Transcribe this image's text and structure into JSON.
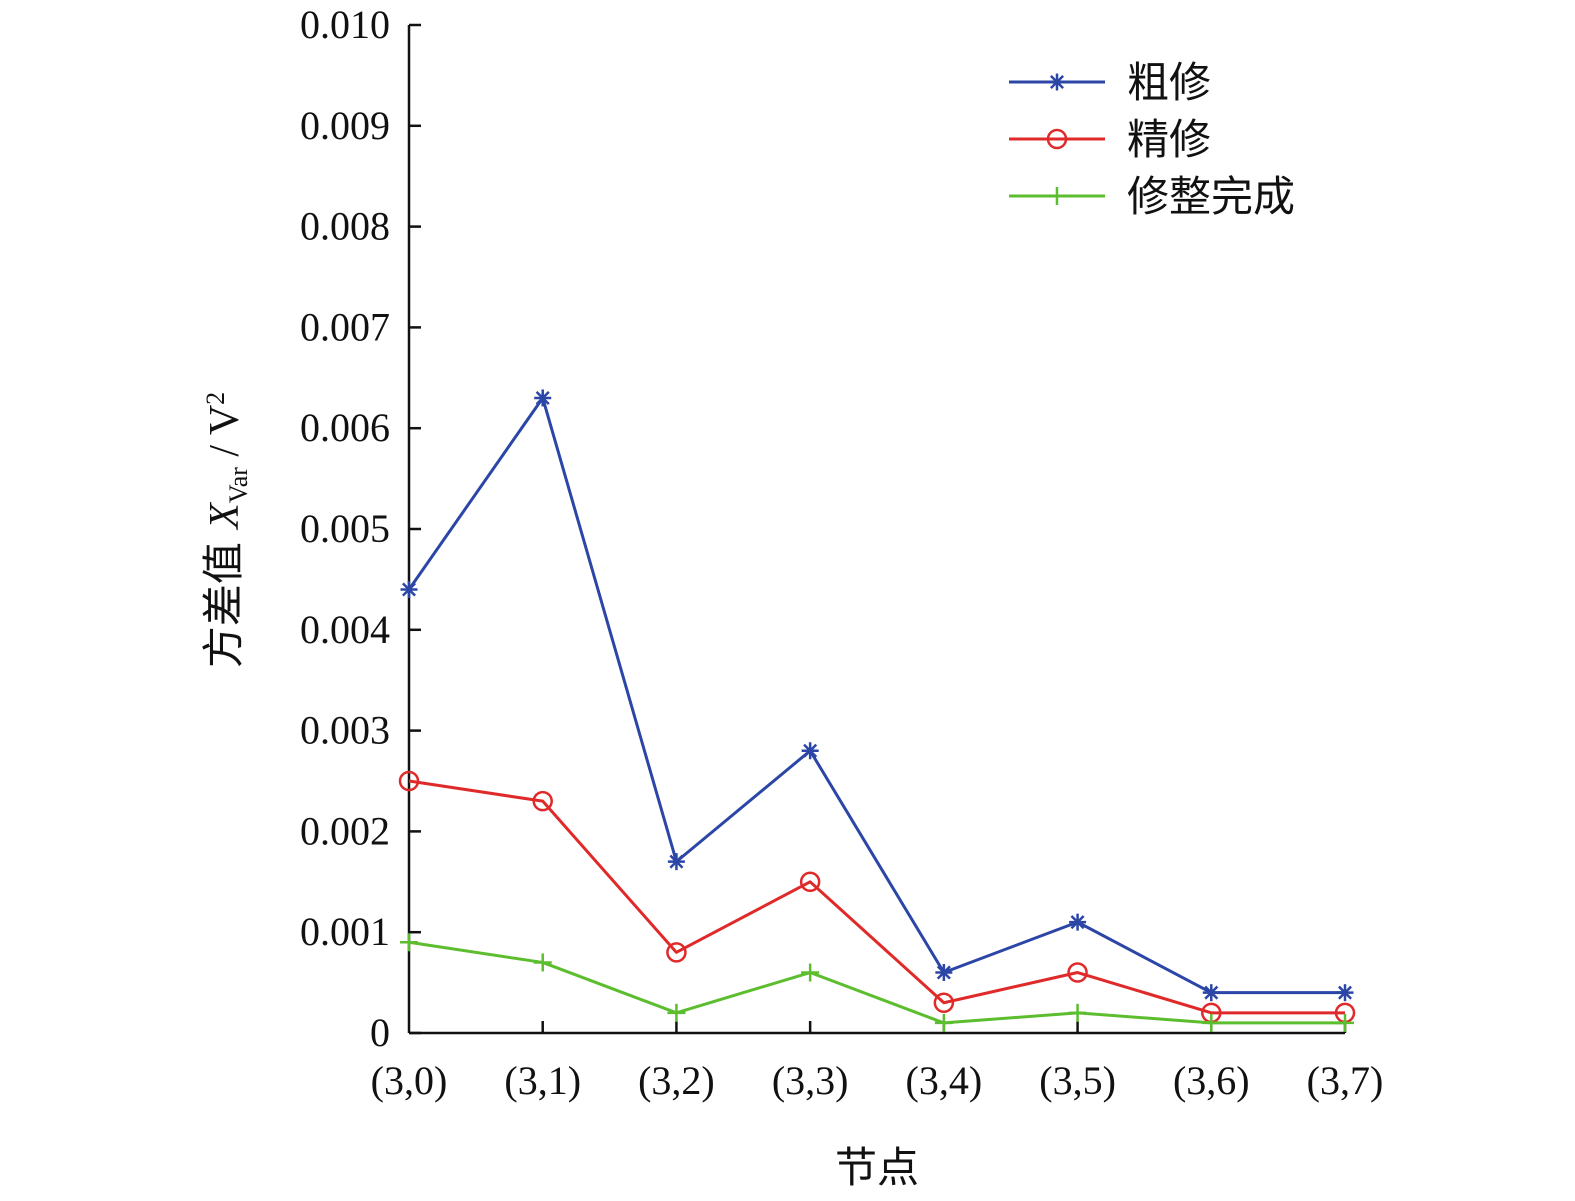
{
  "chart_data": {
    "type": "line",
    "categories": [
      "(3,0)",
      "(3,1)",
      "(3,2)",
      "(3,3)",
      "(3,4)",
      "(3,5)",
      "(3,6)",
      "(3,7)"
    ],
    "series": [
      {
        "name": "粗修",
        "color": "#2b46a6",
        "marker": "asterisk",
        "values": [
          0.0044,
          0.0063,
          0.0017,
          0.0028,
          0.0006,
          0.0011,
          0.0004,
          0.0004
        ]
      },
      {
        "name": "精修",
        "color": "#e02a2a",
        "marker": "circle",
        "values": [
          0.0025,
          0.0023,
          0.0008,
          0.0015,
          0.0003,
          0.0006,
          0.0002,
          0.0002
        ]
      },
      {
        "name": "修整完成",
        "color": "#5cbd2f",
        "marker": "plus",
        "values": [
          0.0009,
          0.0007,
          0.0002,
          0.0006,
          0.0001,
          0.0002,
          0.0001,
          0.0001
        ]
      }
    ],
    "yticks": [
      "0",
      "0.001",
      "0.002",
      "0.003",
      "0.004",
      "0.005",
      "0.006",
      "0.007",
      "0.008",
      "0.009",
      "0.010"
    ],
    "ylim": [
      0,
      0.01
    ],
    "xlabel": "节点",
    "ylabel": {
      "prefix": "方差值 ",
      "var": "X",
      "sub": "Var",
      "sep": " / V",
      "sup": "2"
    },
    "legend_position": "top-right",
    "grid": false
  }
}
